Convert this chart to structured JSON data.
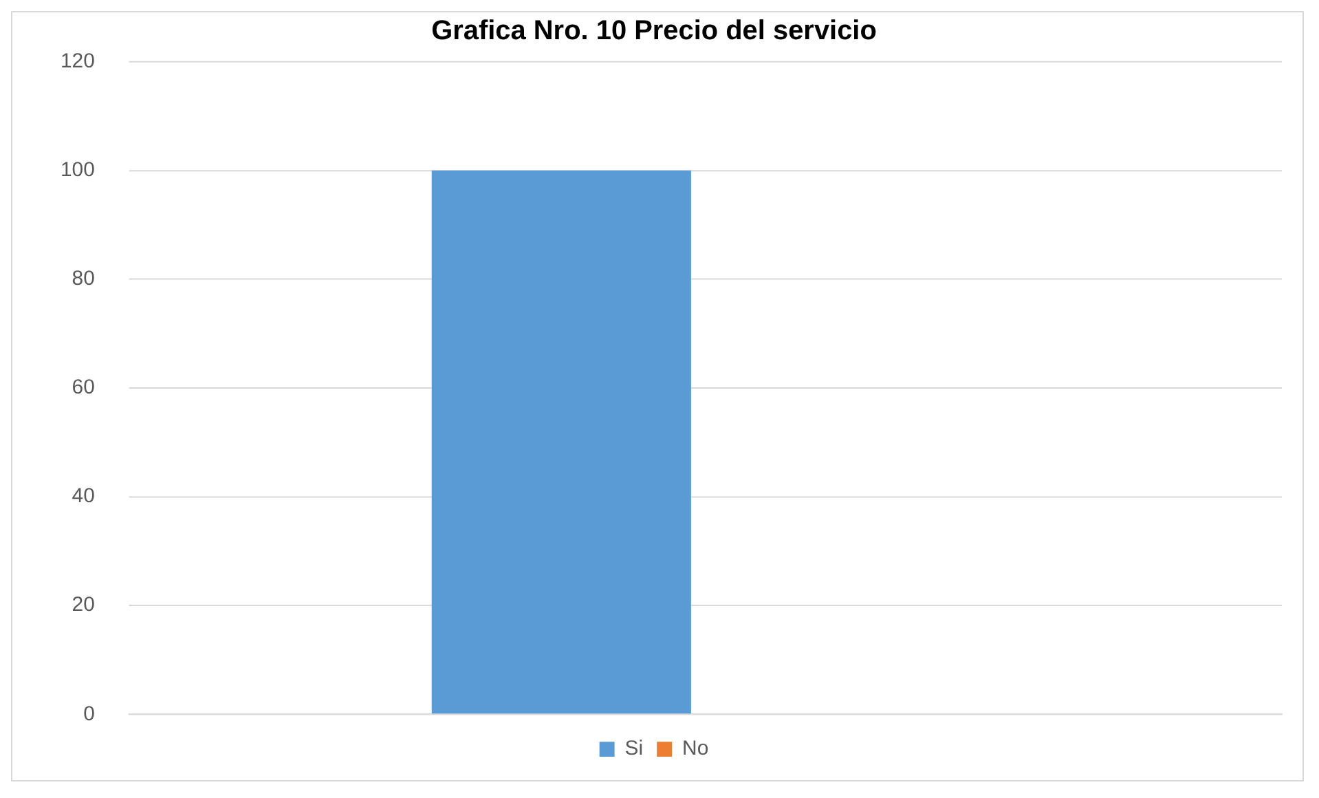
{
  "chart_data": {
    "type": "bar",
    "title": "Grafica Nro. 10 Precio del servicio",
    "categories": [
      null
    ],
    "series": [
      {
        "name": "Si",
        "color": "#5b9bd5",
        "values": [
          100
        ]
      },
      {
        "name": "No",
        "color": "#ed7d31",
        "values": [
          0
        ]
      }
    ],
    "ylim": [
      0,
      120
    ],
    "yticks": [
      0,
      20,
      40,
      60,
      80,
      100,
      120
    ],
    "grid": "y",
    "legend": "bottom"
  }
}
